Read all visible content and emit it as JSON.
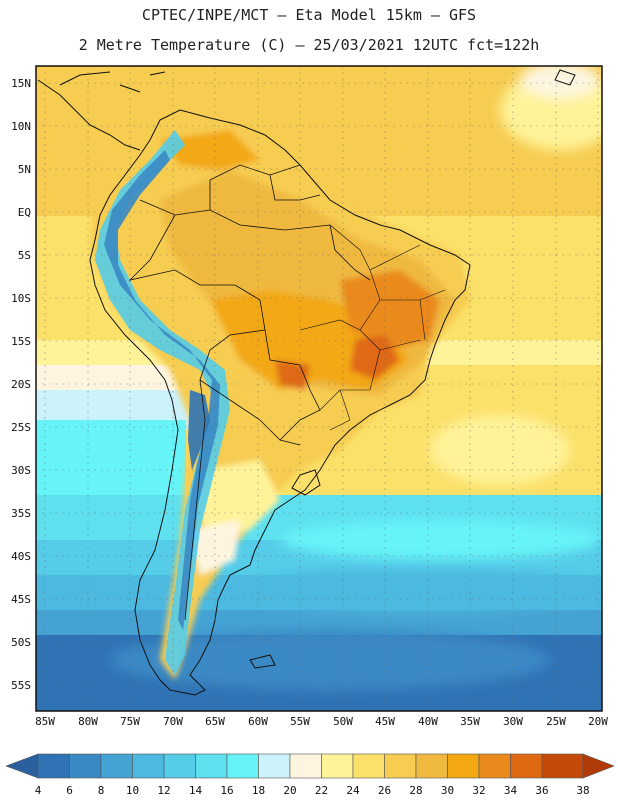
{
  "header": {
    "line1": "CPTEC/INPE/MCT –  Eta Model 15km – GFS",
    "line2": "2 Metre Temperature (C) – 25/03/2021 12UTC fct=122h"
  },
  "map": {
    "lat_labels": [
      "15N",
      "10N",
      "5N",
      "EQ",
      "5S",
      "10S",
      "15S",
      "20S",
      "25S",
      "30S",
      "35S",
      "40S",
      "45S",
      "50S",
      "55S"
    ],
    "lon_labels": [
      "85W",
      "80W",
      "75W",
      "70W",
      "65W",
      "60W",
      "55W",
      "50W",
      "45W",
      "40W",
      "35W",
      "30W",
      "25W",
      "20W"
    ]
  },
  "colorbar": {
    "labels": [
      "4",
      "6",
      "8",
      "10",
      "12",
      "14",
      "16",
      "18",
      "20",
      "22",
      "24",
      "26",
      "28",
      "30",
      "32",
      "34",
      "36",
      "38"
    ],
    "colors": [
      "#2f73b4",
      "#3a89c4",
      "#45a3d4",
      "#4cb9e0",
      "#55cce8",
      "#5ee0ef",
      "#66f4f8",
      "#ccf2fb",
      "#fdf5e0",
      "#fff39a",
      "#fbe069",
      "#f6cc51",
      "#efb93f",
      "#f3a812",
      "#ea8a1c",
      "#df6912",
      "#c44a0a"
    ],
    "left_arrow_color": "#2a5fa0",
    "right_arrow_color": "#b03a08"
  }
}
